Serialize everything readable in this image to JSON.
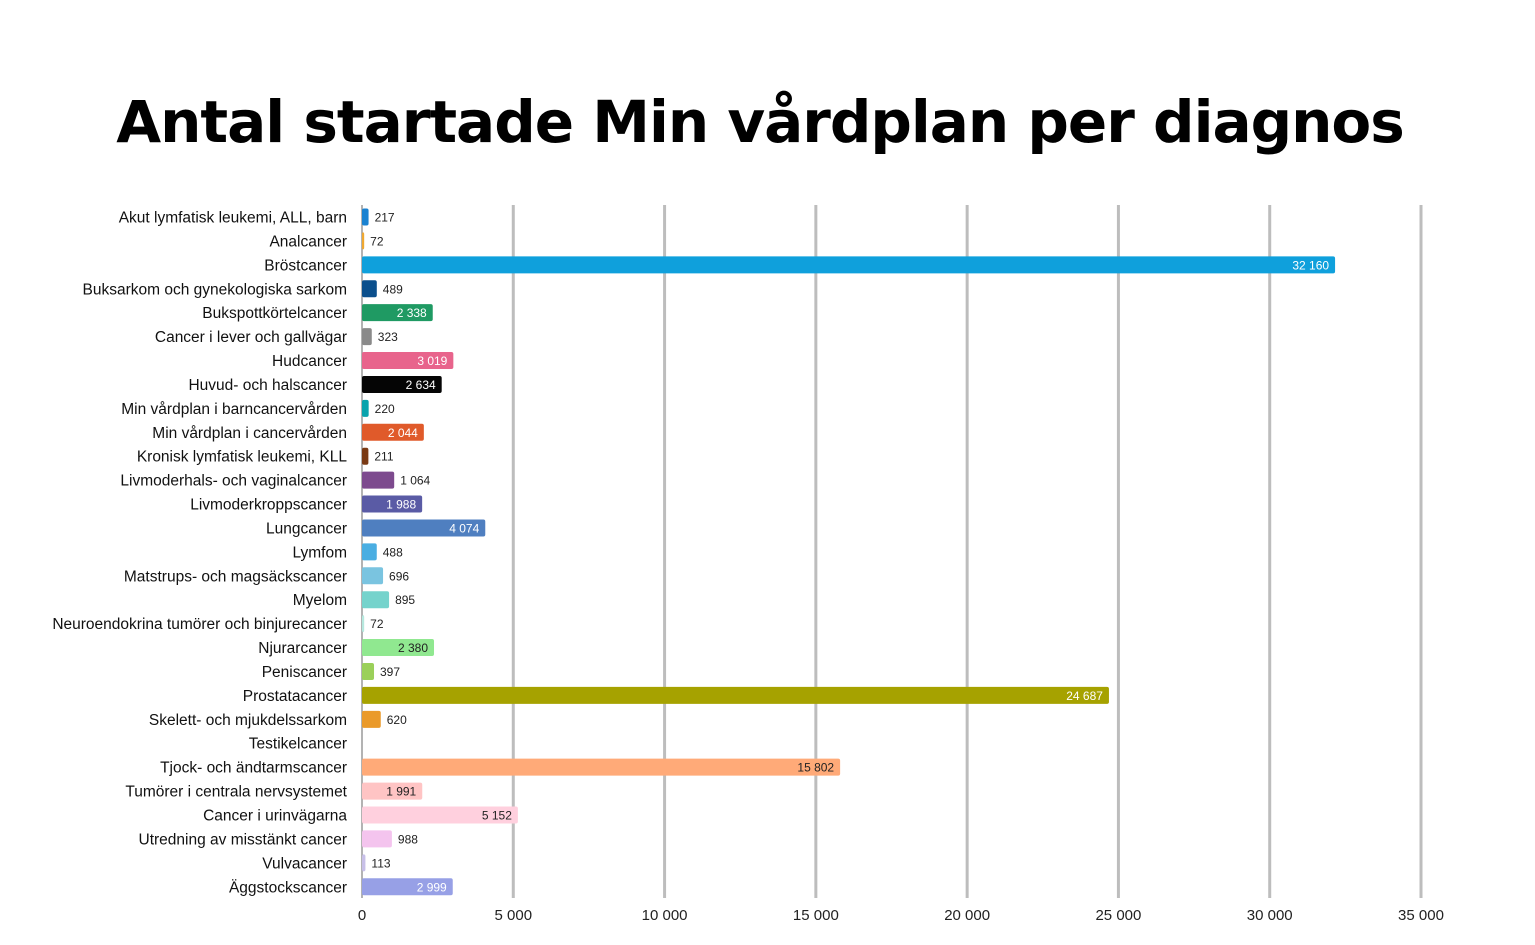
{
  "chart_data": {
    "type": "bar",
    "orientation": "horizontal",
    "title": "Antal startade Min vårdplan per diagnos",
    "xlim": [
      0,
      35000
    ],
    "xticks": [
      0,
      5000,
      10000,
      15000,
      20000,
      25000,
      30000,
      35000
    ],
    "xtick_labels": [
      "0",
      "5 000",
      "10 000",
      "15 000",
      "20 000",
      "25 000",
      "30 000",
      "35 000"
    ],
    "grid": "vertical",
    "legend": "none",
    "categories": [
      "Akut lymfatisk leukemi, ALL, barn",
      "Analcancer",
      "Bröstcancer",
      "Buksarkom och gynekologiska sarkom",
      "Bukspottkörtelcancer",
      "Cancer i lever och gallvägar",
      "Hudcancer",
      "Huvud- och halscancer",
      "Min vårdplan i barncancervården",
      "Min vårdplan i cancervården",
      "Kronisk lymfatisk leukemi, KLL",
      "Livmoderhals- och vaginalcancer",
      "Livmoderkroppscancer",
      "Lungcancer",
      "Lymfom",
      "Matstrups- och magsäckscancer",
      "Myelom",
      "Neuroendokrina tumörer och binjurecancer",
      "Njurarcancer",
      "Peniscancer",
      "Prostatacancer",
      "Skelett- och mjukdelssarkom",
      "Testikelcancer",
      "Tjock- och ändtarmscancer",
      "Tumörer i centrala nervsystemet",
      "Cancer i urinvägarna",
      "Utredning av misstänkt cancer",
      "Vulvacancer",
      "Äggstockscancer"
    ],
    "values": [
      217,
      72,
      32160,
      489,
      2338,
      323,
      3019,
      2634,
      220,
      2044,
      211,
      1064,
      1988,
      4074,
      488,
      696,
      895,
      72,
      2380,
      397,
      24687,
      620,
      0,
      15802,
      1991,
      5152,
      988,
      113,
      2999
    ],
    "value_labels": [
      "217",
      "72",
      "32 160",
      "489",
      "2 338",
      "323",
      "3 019",
      "2 634",
      "220",
      "2 044",
      "211",
      "1 064",
      "1 988",
      "4 074",
      "488",
      "696",
      "895",
      "72",
      "2 380",
      "397",
      "24 687",
      "620",
      "",
      "15 802",
      "1 991",
      "5 152",
      "988",
      "113",
      "2 999"
    ],
    "value_label_position": [
      "outside",
      "outside",
      "inside",
      "outside",
      "inside",
      "outside",
      "inside",
      "inside",
      "outside",
      "inside",
      "outside",
      "outside",
      "inside",
      "inside",
      "outside",
      "outside",
      "outside",
      "outside",
      "inside",
      "outside",
      "inside",
      "outside",
      "none",
      "inside",
      "inside",
      "inside",
      "outside",
      "outside",
      "inside"
    ],
    "value_label_colors": [
      "#222222",
      "#222222",
      "#ffffff",
      "#222222",
      "#ffffff",
      "#222222",
      "#ffffff",
      "#ffffff",
      "#222222",
      "#ffffff",
      "#222222",
      "#222222",
      "#ffffff",
      "#ffffff",
      "#222222",
      "#222222",
      "#222222",
      "#222222",
      "#222222",
      "#222222",
      "#ffffff",
      "#222222",
      "#222222",
      "#222222",
      "#222222",
      "#222222",
      "#222222",
      "#222222",
      "#ffffff"
    ],
    "colors": [
      "#1a82d1",
      "#f0a830",
      "#0fa0dc",
      "#0b4f8c",
      "#1f9a63",
      "#8a8a8a",
      "#e8648c",
      "#050505",
      "#0aa3ad",
      "#e05a2a",
      "#7a3a14",
      "#7d4a8e",
      "#5a5ba5",
      "#4f7fc0",
      "#4aaee2",
      "#7ac4e0",
      "#75d3cc",
      "#b6e8de",
      "#90e890",
      "#9bd05a",
      "#a6a200",
      "#ea9a2a",
      "#cccccc",
      "#ffaa78",
      "#ffc4c4",
      "#ffd0de",
      "#f4c4ee",
      "#c8c0e8",
      "#97a0e6"
    ]
  }
}
